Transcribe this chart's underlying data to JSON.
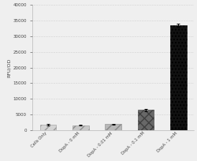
{
  "categories": [
    "Cells Only",
    "DopA - 0 mM",
    "DopA - 0.01 mM",
    "DopA - 0.1 mM",
    "DopA - 1 mM"
  ],
  "values": [
    1800,
    1600,
    1900,
    6500,
    33500
  ],
  "errors": [
    200,
    150,
    180,
    350,
    550
  ],
  "bar_styles": [
    {
      "color": "#d4d4d4",
      "hatch": "///",
      "edgecolor": "#999999"
    },
    {
      "color": "#c8c8c8",
      "hatch": "///",
      "edgecolor": "#909090"
    },
    {
      "color": "#b8b8b8",
      "hatch": "///",
      "edgecolor": "#888888"
    },
    {
      "color": "#686868",
      "hatch": "xxx",
      "edgecolor": "#404040"
    },
    {
      "color": "#111111",
      "hatch": "....",
      "edgecolor": "#000000"
    }
  ],
  "ylabel": "RFU/OD",
  "ylim": [
    0,
    40000
  ],
  "yticks": [
    0,
    5000,
    10000,
    15000,
    20000,
    25000,
    30000,
    35000,
    40000
  ],
  "background_color": "#efefef",
  "figsize": [
    2.5,
    2.04
  ],
  "dpi": 100
}
